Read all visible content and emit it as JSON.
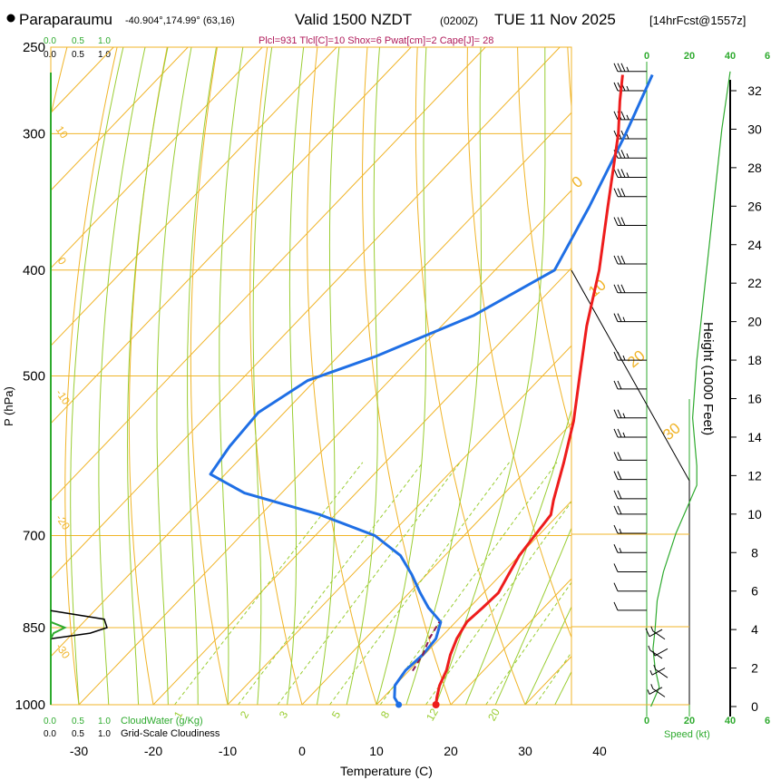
{
  "header": {
    "location": "Paraparaumu",
    "coords": "-40.904°,174.99° (63,16)",
    "valid": "Valid 1500 NZDT",
    "utc": "(0200Z)",
    "date": "TUE 11 Nov 2025",
    "fcst": "[14hrFcst@1557z]",
    "params": "Plcl=931 Tlcl[C]=10 Shox=6 Pwat[cm]=2 Cape[J]= 28"
  },
  "colors": {
    "temperature": "#ee1c1c",
    "dewpoint": "#1f6fe5",
    "isotherm": "#f0b428",
    "dry_adiabat": "#f0b428",
    "moist_adiabat": "#9acd32",
    "mixing_ratio": "#9acd32",
    "parcel": "#8b1a55",
    "cloud": "#2eaa2e",
    "params_text": "#b01a5a"
  },
  "chart_data": {
    "type": "skew-t",
    "title": "Paraparaumu Valid 1500 NZDT TUE 11 Nov 2025",
    "xlabel": "Temperature (C)",
    "ylabel": "P (hPa)",
    "x_ticks": [
      -30,
      -20,
      -10,
      0,
      10,
      20,
      30,
      40
    ],
    "x_tick_labels": [
      "-30",
      "-20",
      "-10",
      "0",
      "10",
      "20",
      "30",
      "40"
    ],
    "p_levels": [
      250,
      300,
      400,
      500,
      700,
      850,
      1000
    ],
    "p_tick_labels": [
      "250",
      "300",
      "400",
      "500",
      "700",
      "850",
      "1000"
    ],
    "xlim": [
      -36,
      36
    ],
    "plim": [
      250,
      1000
    ],
    "isotherm_labels": [
      "0",
      "10",
      "20",
      "30"
    ],
    "dry_adiabat_labels": [
      "10",
      "0",
      "-10",
      "-20",
      "-30"
    ],
    "mixing_ratio_labels": [
      "1",
      "2",
      "3",
      "5",
      "8",
      "12",
      "20"
    ],
    "temperature_profile": [
      {
        "p": 1000,
        "t": 18.0
      },
      {
        "p": 985,
        "t": 17.2
      },
      {
        "p": 960,
        "t": 16.0
      },
      {
        "p": 930,
        "t": 15.0
      },
      {
        "p": 900,
        "t": 13.5
      },
      {
        "p": 870,
        "t": 12.3
      },
      {
        "p": 840,
        "t": 11.5
      },
      {
        "p": 815,
        "t": 11.8
      },
      {
        "p": 790,
        "t": 12.0
      },
      {
        "p": 760,
        "t": 11.0
      },
      {
        "p": 730,
        "t": 10.0
      },
      {
        "p": 700,
        "t": 9.5
      },
      {
        "p": 670,
        "t": 9.0
      },
      {
        "p": 650,
        "t": 7.5
      },
      {
        "p": 600,
        "t": 4.0
      },
      {
        "p": 550,
        "t": 0.0
      },
      {
        "p": 500,
        "t": -5.0
      },
      {
        "p": 450,
        "t": -10.5
      },
      {
        "p": 400,
        "t": -16.0
      },
      {
        "p": 350,
        "t": -23.0
      },
      {
        "p": 300,
        "t": -31.0
      },
      {
        "p": 280,
        "t": -35.0
      },
      {
        "p": 265,
        "t": -38.0
      }
    ],
    "dewpoint_profile": [
      {
        "p": 1000,
        "t": 13.0
      },
      {
        "p": 985,
        "t": 11.5
      },
      {
        "p": 960,
        "t": 10.0
      },
      {
        "p": 930,
        "t": 9.5
      },
      {
        "p": 900,
        "t": 9.8
      },
      {
        "p": 870,
        "t": 9.5
      },
      {
        "p": 840,
        "t": 8.0
      },
      {
        "p": 815,
        "t": 4.5
      },
      {
        "p": 790,
        "t": 1.5
      },
      {
        "p": 760,
        "t": -2.0
      },
      {
        "p": 730,
        "t": -6.0
      },
      {
        "p": 700,
        "t": -12.0
      },
      {
        "p": 670,
        "t": -22.0
      },
      {
        "p": 640,
        "t": -35.0
      },
      {
        "p": 615,
        "t": -42.0
      },
      {
        "p": 580,
        "t": -43.0
      },
      {
        "p": 540,
        "t": -43.5
      },
      {
        "p": 505,
        "t": -41.0
      },
      {
        "p": 480,
        "t": -35.0
      },
      {
        "p": 440,
        "t": -27.0
      },
      {
        "p": 400,
        "t": -22.0
      },
      {
        "p": 350,
        "t": -25.5
      },
      {
        "p": 300,
        "t": -30.0
      },
      {
        "p": 265,
        "t": -34.0
      }
    ],
    "parcel_profile": [
      {
        "p": 931,
        "t": 10.5
      },
      {
        "p": 900,
        "t": 9.8
      },
      {
        "p": 870,
        "t": 8.6
      },
      {
        "p": 840,
        "t": 7.8
      }
    ],
    "surface": {
      "t": 18.0,
      "td": 13.0
    },
    "cloudiness_axis_labels": [
      "0.0",
      "0.5",
      "1.0"
    ],
    "cloudwater_axis_labels": [
      "0.0",
      "0.5",
      "1.0"
    ],
    "cloudwater_label": "CloudWater (g/Kg)",
    "cloudiness_label": "Grid-Scale Cloudiness",
    "height_label": "Height (1000 Feet)",
    "height_ticks": [
      0,
      2,
      4,
      6,
      8,
      10,
      12,
      14,
      16,
      18,
      20,
      22,
      24,
      26,
      28,
      30,
      32
    ],
    "speed_ticks": [
      "0",
      "20",
      "40",
      "6"
    ],
    "speed_label": "Speed (kt)",
    "wind_speed_profile": [
      {
        "h": 0.0,
        "s": 2
      },
      {
        "h": 1.0,
        "s": 6
      },
      {
        "h": 2.0,
        "s": 4
      },
      {
        "h": 3.0,
        "s": 3
      },
      {
        "h": 4.0,
        "s": 4
      },
      {
        "h": 5.5,
        "s": 5
      },
      {
        "h": 7.0,
        "s": 8
      },
      {
        "h": 9.0,
        "s": 14
      },
      {
        "h": 10.5,
        "s": 20
      },
      {
        "h": 11.5,
        "s": 24
      },
      {
        "h": 12.5,
        "s": 24
      },
      {
        "h": 15.0,
        "s": 22
      },
      {
        "h": 18.0,
        "s": 24
      },
      {
        "h": 22.0,
        "s": 28
      },
      {
        "h": 26.0,
        "s": 32
      },
      {
        "h": 30.0,
        "s": 36
      },
      {
        "h": 33.0,
        "s": 40
      }
    ],
    "wind_barbs": [
      {
        "h": 33.0,
        "s": 35
      },
      {
        "h": 32.0,
        "s": 35
      },
      {
        "h": 30.5,
        "s": 35
      },
      {
        "h": 29.5,
        "s": 35
      },
      {
        "h": 28.5,
        "s": 35
      },
      {
        "h": 27.5,
        "s": 35
      },
      {
        "h": 26.5,
        "s": 30
      },
      {
        "h": 25.0,
        "s": 30
      },
      {
        "h": 23.0,
        "s": 30
      },
      {
        "h": 21.5,
        "s": 30
      },
      {
        "h": 20.0,
        "s": 25
      },
      {
        "h": 18.0,
        "s": 25
      },
      {
        "h": 16.5,
        "s": 20
      },
      {
        "h": 15.0,
        "s": 25
      },
      {
        "h": 14.0,
        "s": 25
      },
      {
        "h": 12.8,
        "s": 20
      },
      {
        "h": 11.8,
        "s": 20
      },
      {
        "h": 10.8,
        "s": 20
      },
      {
        "h": 10.0,
        "s": 20
      },
      {
        "h": 9.0,
        "s": 15
      },
      {
        "h": 8.0,
        "s": 15
      },
      {
        "h": 7.0,
        "s": 10
      },
      {
        "h": 6.0,
        "s": 10
      },
      {
        "h": 5.0,
        "s": 10
      },
      {
        "h": 4.0,
        "s": 10
      },
      {
        "h": 3.5,
        "s": 5
      },
      {
        "h": 3.0,
        "s": 5
      },
      {
        "h": 2.5,
        "s": 5
      },
      {
        "h": 2.0,
        "s": 5
      },
      {
        "h": 1.5,
        "s": 5
      },
      {
        "h": 1.0,
        "s": 5
      },
      {
        "h": 0.5,
        "s": 5
      }
    ],
    "cloudiness_profile": [
      {
        "p": 820,
        "c": 0.0
      },
      {
        "p": 835,
        "c": 0.95
      },
      {
        "p": 850,
        "c": 1.0
      },
      {
        "p": 860,
        "c": 0.7
      },
      {
        "p": 870,
        "c": 0.0
      }
    ],
    "cloudwater_profile": [
      {
        "p": 840,
        "c": 0.0
      },
      {
        "p": 850,
        "c": 0.25
      },
      {
        "p": 860,
        "c": 0.05
      },
      {
        "p": 870,
        "c": 0.0
      }
    ]
  }
}
